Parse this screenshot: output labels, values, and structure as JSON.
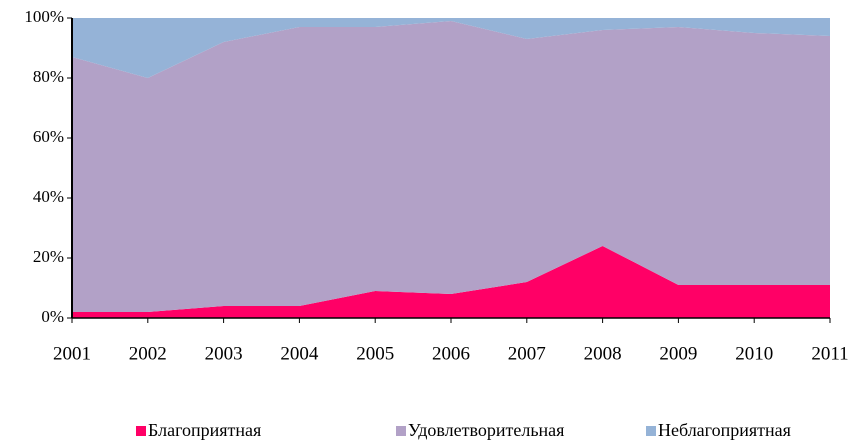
{
  "chart_data": {
    "type": "stacked_area",
    "categories": [
      "2001",
      "2002",
      "2003",
      "2004",
      "2005",
      "2006",
      "2007",
      "2008",
      "2009",
      "2010",
      "2011"
    ],
    "series": [
      {
        "name": "Благоприятная",
        "color": "#ff0066",
        "values": [
          2,
          2,
          4,
          4,
          9,
          8,
          12,
          24,
          11,
          11,
          11
        ]
      },
      {
        "name": "Удовлетворительная",
        "color": "#b2a1c7",
        "values": [
          85,
          78,
          88,
          93,
          88,
          91,
          81,
          72,
          86,
          84,
          83
        ]
      },
      {
        "name": "Неблагоприятная",
        "color": "#95b3d7",
        "values": [
          13,
          20,
          8,
          3,
          3,
          1,
          7,
          4,
          3,
          5,
          6
        ]
      }
    ],
    "ylim": [
      0,
      100
    ],
    "yticks": [
      {
        "value": 0,
        "label": "0%"
      },
      {
        "value": 20,
        "label": "20%"
      },
      {
        "value": 40,
        "label": "40%"
      },
      {
        "value": 60,
        "label": "60%"
      },
      {
        "value": 80,
        "label": "80%"
      },
      {
        "value": 100,
        "label": "100%"
      }
    ],
    "grid": false,
    "legend": "bottom"
  }
}
